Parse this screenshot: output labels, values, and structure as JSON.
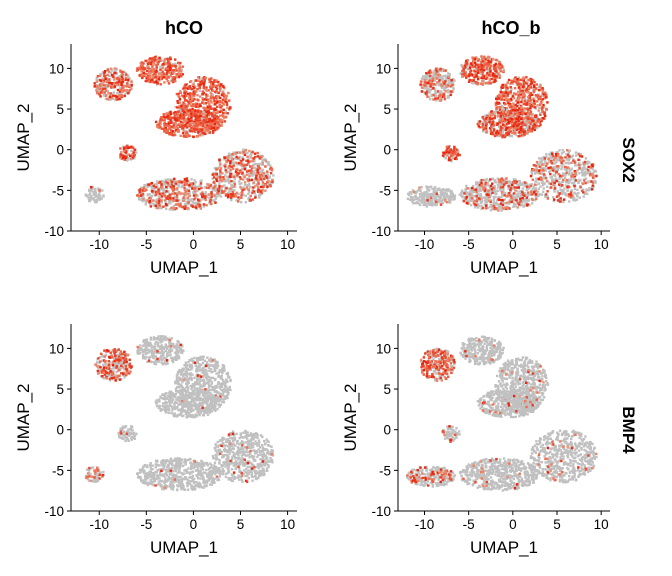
{
  "chart_data": {
    "type": "scatter",
    "facet_columns": [
      "hCO",
      "hCO_b"
    ],
    "facet_rows": [
      "SOX2",
      "BMP4"
    ],
    "xlabel": "UMAP_1",
    "ylabel": "UMAP_2",
    "xlim": [
      -13,
      11
    ],
    "ylim": [
      -10,
      13
    ],
    "xticks": [
      -10,
      -5,
      0,
      5,
      10
    ],
    "yticks": [
      -10,
      -5,
      0,
      5,
      10
    ],
    "grid": false,
    "legend": "none",
    "colors": {
      "low": "#c0c0c0",
      "mid": "#f08060",
      "high": "#e8250c"
    },
    "panels": [
      {
        "column": "hCO",
        "row": "SOX2",
        "regions": [
          {
            "region": "upper-left arm",
            "x": [
              -10.5,
              -6.5
            ],
            "y": [
              6,
              10
            ],
            "expression": 0.55
          },
          {
            "region": "top lobe",
            "x": [
              -6,
              -1
            ],
            "y": [
              8,
              11.5
            ],
            "expression": 0.85
          },
          {
            "region": "upper-right arc",
            "x": [
              -2,
              4
            ],
            "y": [
              2,
              9
            ],
            "expression": 0.9
          },
          {
            "region": "center band",
            "x": [
              -4,
              3
            ],
            "y": [
              1.5,
              5
            ],
            "expression": 0.85
          },
          {
            "region": "right lobe",
            "x": [
              2,
              8.5
            ],
            "y": [
              -6.5,
              0
            ],
            "expression": 0.45
          },
          {
            "region": "bottom lobe",
            "x": [
              -6,
              3
            ],
            "y": [
              -7.5,
              -3.5
            ],
            "expression": 0.4
          },
          {
            "region": "small cluster",
            "x": [
              -8,
              -6
            ],
            "y": [
              -1.5,
              0.5
            ],
            "expression": 0.7
          },
          {
            "region": "far-left cluster",
            "x": [
              -11.5,
              -9.5
            ],
            "y": [
              -6.5,
              -4.5
            ],
            "expression": 0.05
          }
        ]
      },
      {
        "column": "hCO_b",
        "row": "SOX2",
        "regions": [
          {
            "region": "upper-left arm",
            "x": [
              -10.5,
              -6.5
            ],
            "y": [
              6,
              10
            ],
            "expression": 0.35
          },
          {
            "region": "top lobe",
            "x": [
              -6,
              -1
            ],
            "y": [
              8,
              11.5
            ],
            "expression": 0.8
          },
          {
            "region": "upper-right arc",
            "x": [
              -2,
              4
            ],
            "y": [
              2,
              9
            ],
            "expression": 0.8
          },
          {
            "region": "center band",
            "x": [
              -4,
              3
            ],
            "y": [
              1.5,
              5
            ],
            "expression": 0.65
          },
          {
            "region": "right lobe",
            "x": [
              2,
              9.5
            ],
            "y": [
              -6.5,
              0
            ],
            "expression": 0.3
          },
          {
            "region": "bottom lobe",
            "x": [
              -6,
              3
            ],
            "y": [
              -7.5,
              -3.5
            ],
            "expression": 0.3
          },
          {
            "region": "small cluster",
            "x": [
              -8,
              -6
            ],
            "y": [
              -1.5,
              0.5
            ],
            "expression": 0.6
          },
          {
            "region": "far-left cluster",
            "x": [
              -12,
              -6.5
            ],
            "y": [
              -7,
              -4.5
            ],
            "expression": 0.05
          }
        ]
      },
      {
        "column": "hCO",
        "row": "BMP4",
        "regions": [
          {
            "region": "upper-left arm",
            "x": [
              -10.5,
              -6.5
            ],
            "y": [
              6,
              10
            ],
            "expression": 0.45
          },
          {
            "region": "top lobe",
            "x": [
              -6,
              -1
            ],
            "y": [
              8,
              11.5
            ],
            "expression": 0.02
          },
          {
            "region": "upper-right arc",
            "x": [
              -2,
              4
            ],
            "y": [
              2,
              9
            ],
            "expression": 0.02
          },
          {
            "region": "center band",
            "x": [
              -4,
              3
            ],
            "y": [
              1.5,
              5
            ],
            "expression": 0.02
          },
          {
            "region": "right lobe",
            "x": [
              2,
              8.5
            ],
            "y": [
              -6.5,
              0
            ],
            "expression": 0.04
          },
          {
            "region": "bottom lobe",
            "x": [
              -6,
              3
            ],
            "y": [
              -7.5,
              -3.5
            ],
            "expression": 0.02
          },
          {
            "region": "small cluster",
            "x": [
              -8,
              -6
            ],
            "y": [
              -1.5,
              0.5
            ],
            "expression": 0.02
          },
          {
            "region": "far-left cluster",
            "x": [
              -11.5,
              -9.5
            ],
            "y": [
              -6.5,
              -4.5
            ],
            "expression": 0.3
          }
        ]
      },
      {
        "column": "hCO_b",
        "row": "BMP4",
        "regions": [
          {
            "region": "upper-left arm",
            "x": [
              -10.5,
              -6.5
            ],
            "y": [
              6,
              10
            ],
            "expression": 0.6
          },
          {
            "region": "top lobe",
            "x": [
              -6,
              -1
            ],
            "y": [
              8,
              11.5
            ],
            "expression": 0.03
          },
          {
            "region": "upper-right arc",
            "x": [
              -2,
              4
            ],
            "y": [
              2,
              9
            ],
            "expression": 0.04
          },
          {
            "region": "center band",
            "x": [
              -4,
              3
            ],
            "y": [
              1.5,
              5
            ],
            "expression": 0.04
          },
          {
            "region": "right lobe",
            "x": [
              2,
              9.5
            ],
            "y": [
              -6.5,
              0
            ],
            "expression": 0.06
          },
          {
            "region": "bottom lobe",
            "x": [
              -6,
              3
            ],
            "y": [
              -7.5,
              -3.5
            ],
            "expression": 0.05
          },
          {
            "region": "small cluster",
            "x": [
              -8,
              -6
            ],
            "y": [
              -1.5,
              0.5
            ],
            "expression": 0.05
          },
          {
            "region": "far-left cluster",
            "x": [
              -12,
              -6.5
            ],
            "y": [
              -7,
              -4.5
            ],
            "expression": 0.25
          }
        ]
      }
    ]
  }
}
